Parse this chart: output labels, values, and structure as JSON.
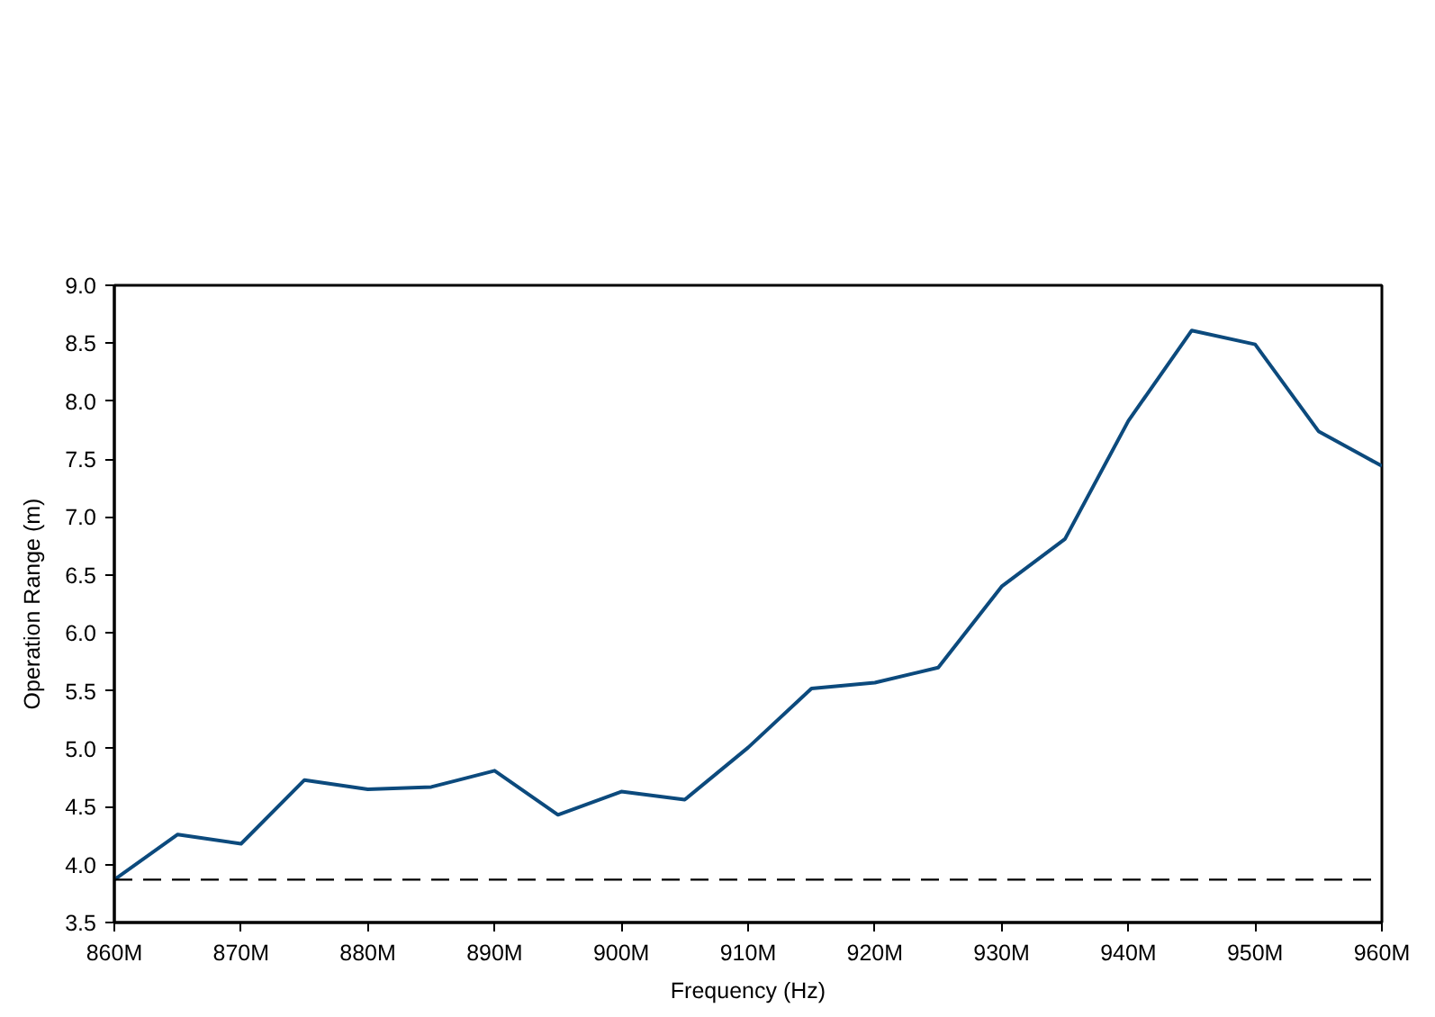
{
  "chart_data": {
    "type": "line",
    "xlabel": "Frequency (Hz)",
    "ylabel": "Operation Range (m)",
    "x": [
      860000000,
      865000000,
      870000000,
      875000000,
      880000000,
      885000000,
      890000000,
      895000000,
      900000000,
      905000000,
      910000000,
      915000000,
      920000000,
      925000000,
      930000000,
      935000000,
      940000000,
      945000000,
      950000000,
      955000000,
      960000000
    ],
    "series": [
      {
        "color": "#0c4a7d",
        "values": [
          3.87,
          4.26,
          4.18,
          4.73,
          4.65,
          4.67,
          4.81,
          4.43,
          4.63,
          4.56,
          5.01,
          5.52,
          5.57,
          5.7,
          6.4,
          6.81,
          7.83,
          8.61,
          8.49,
          7.74,
          7.44
        ]
      }
    ],
    "xlim": [
      860000000,
      960000000
    ],
    "xticks": [
      {
        "value": 860000000,
        "label": "860M"
      },
      {
        "value": 870000000,
        "label": "870M"
      },
      {
        "value": 880000000,
        "label": "880M"
      },
      {
        "value": 890000000,
        "label": "890M"
      },
      {
        "value": 900000000,
        "label": "900M"
      },
      {
        "value": 910000000,
        "label": "910M"
      },
      {
        "value": 920000000,
        "label": "920M"
      },
      {
        "value": 930000000,
        "label": "930M"
      },
      {
        "value": 940000000,
        "label": "940M"
      },
      {
        "value": 950000000,
        "label": "950M"
      },
      {
        "value": 960000000,
        "label": "960M"
      }
    ],
    "ylim": [
      3.5,
      9.0
    ],
    "yticks": [
      3.5,
      {
        "value": 4,
        "label": "4.0"
      },
      4.5,
      {
        "value": 5,
        "label": "5.0"
      },
      5.5,
      {
        "value": 6,
        "label": "6.0"
      },
      6.5,
      {
        "value": 7,
        "label": "7.0"
      },
      7.5,
      {
        "value": 8,
        "label": "8.0"
      },
      8.5,
      {
        "value": 9,
        "label": "9.0"
      }
    ],
    "ref_lines": [
      {
        "axis": "y",
        "value": 3.87,
        "color": "#000000",
        "line_style": "dashed"
      }
    ],
    "grid": false
  }
}
